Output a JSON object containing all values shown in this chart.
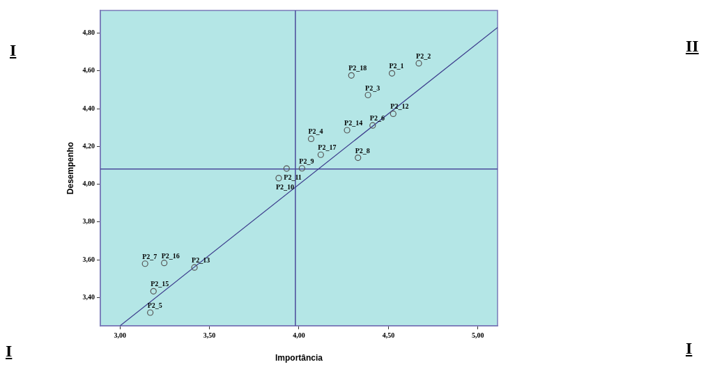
{
  "chart_data": {
    "type": "scatter",
    "xlabel": "Importância",
    "ylabel": "Desempenho",
    "xlim": [
      2.89,
      5.11
    ],
    "ylim": [
      3.25,
      4.92
    ],
    "xticks": [
      {
        "value": 3,
        "label": "3,00"
      },
      {
        "value": 3.5,
        "label": "3,50"
      },
      {
        "value": 4,
        "label": "4,00"
      },
      {
        "value": 4.5,
        "label": "4,50"
      },
      {
        "value": 5,
        "label": "5,00"
      }
    ],
    "yticks": [
      {
        "value": 3.4,
        "label": "3,40"
      },
      {
        "value": 3.6,
        "label": "3,60"
      },
      {
        "value": 3.8,
        "label": "3,80"
      },
      {
        "value": 4,
        "label": "4,00"
      },
      {
        "value": 4.2,
        "label": "4,20"
      },
      {
        "value": 4.4,
        "label": "4,40"
      },
      {
        "value": 4.6,
        "label": "4,60"
      },
      {
        "value": 4.8,
        "label": "4,80"
      }
    ],
    "grid": false,
    "legend": false,
    "marker": "circle",
    "series": [
      {
        "color": "#555555",
        "x": [
          4.52,
          4.67,
          4.386,
          4.068,
          3.169,
          4.412,
          3.14,
          4.33,
          4.017,
          3.887,
          3.931,
          4.527,
          3.416,
          4.269,
          3.187,
          3.247,
          4.122,
          4.293
        ],
        "values": [
          4.587,
          4.64,
          4.472,
          4.24,
          3.32,
          4.311,
          3.579,
          4.14,
          4.084,
          4.032,
          4.083,
          4.373,
          3.559,
          4.286,
          3.433,
          3.583,
          4.156,
          4.576
        ]
      },
      {
        "type": "line",
        "color": "#3c3c8c",
        "x": [
          3.0,
          5.11
        ],
        "values": [
          3.25,
          4.83
        ],
        "marker": "none"
      }
    ],
    "ref_lines": [
      {
        "axis": "x",
        "value": 3.98,
        "color": "#4a4a9a"
      },
      {
        "axis": "y",
        "value": 4.08,
        "color": "#4a4a9a"
      }
    ],
    "annotations": [
      {
        "text": "P2_1",
        "x": 4.52,
        "y": 4.587
      },
      {
        "text": "P2_2",
        "x": 4.67,
        "y": 4.64
      },
      {
        "text": "P2_3",
        "x": 4.386,
        "y": 4.472
      },
      {
        "text": "P2_4",
        "x": 4.068,
        "y": 4.24
      },
      {
        "text": "P2_5",
        "x": 3.169,
        "y": 3.32
      },
      {
        "text": "P2_6",
        "x": 4.412,
        "y": 4.311
      },
      {
        "text": "P2_7",
        "x": 3.14,
        "y": 3.579
      },
      {
        "text": "P2_8",
        "x": 4.33,
        "y": 4.14
      },
      {
        "text": "P2_9",
        "x": 4.017,
        "y": 4.084
      },
      {
        "text": "P2_10",
        "x": 3.887,
        "y": 4.032
      },
      {
        "text": "P2_11",
        "x": 3.931,
        "y": 4.083
      },
      {
        "text": "P2_12",
        "x": 4.527,
        "y": 4.373
      },
      {
        "text": "P2_13",
        "x": 3.416,
        "y": 3.559
      },
      {
        "text": "P2_14",
        "x": 4.269,
        "y": 4.286
      },
      {
        "text": "P2_15",
        "x": 3.187,
        "y": 3.433
      },
      {
        "text": "P2_16",
        "x": 3.247,
        "y": 3.583
      },
      {
        "text": "P2_17",
        "x": 4.122,
        "y": 4.156
      },
      {
        "text": "P2_18",
        "x": 4.293,
        "y": 4.576
      },
      "I",
      "II",
      "I",
      "I"
    ]
  }
}
